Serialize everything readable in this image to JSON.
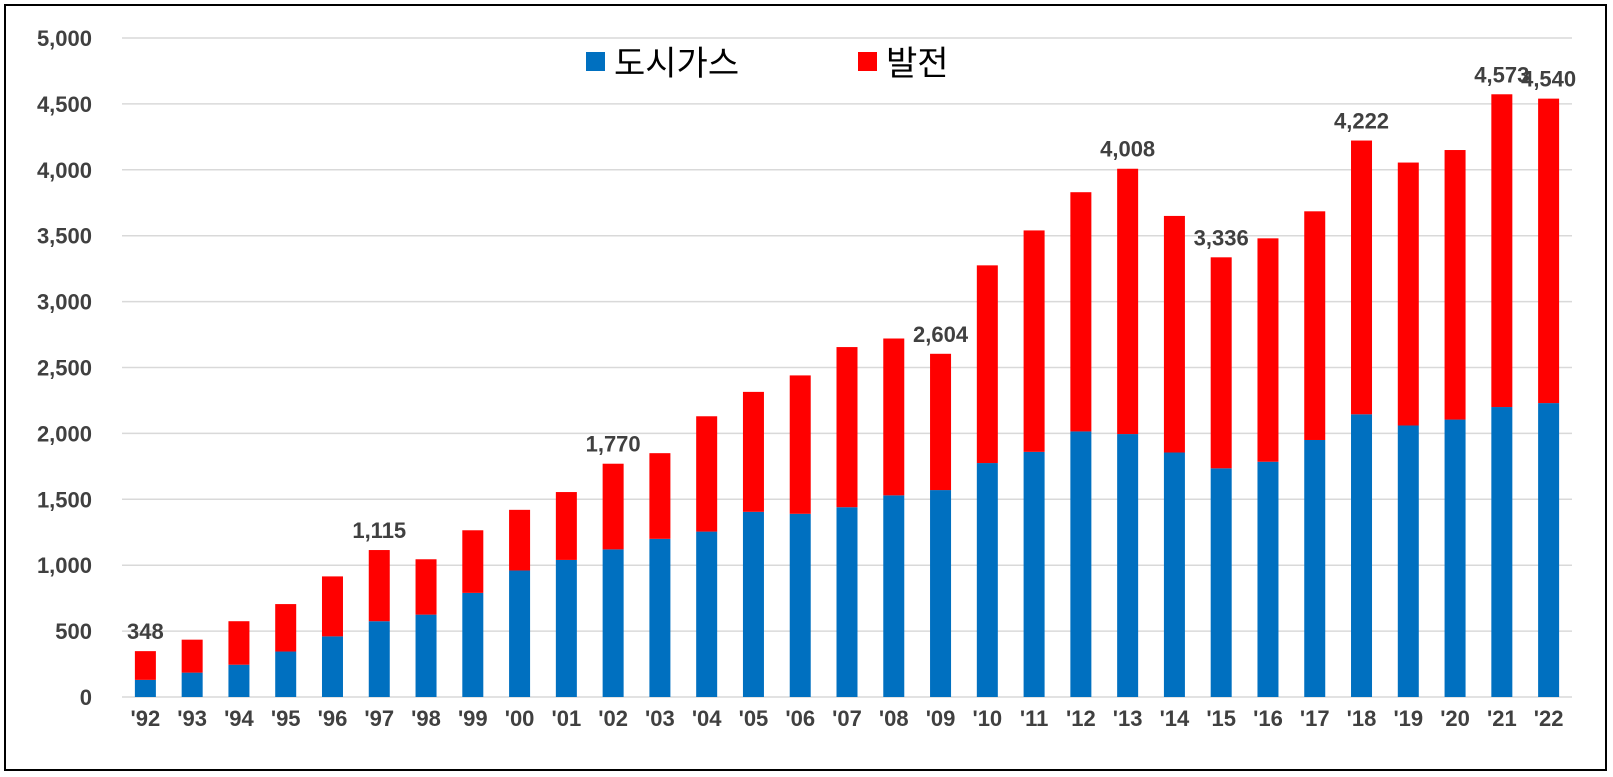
{
  "chart_data": {
    "type": "bar",
    "stacked": true,
    "categories": [
      "'92",
      "'93",
      "'94",
      "'95",
      "'96",
      "'97",
      "'98",
      "'99",
      "'00",
      "'01",
      "'02",
      "'03",
      "'04",
      "'05",
      "'06",
      "'07",
      "'08",
      "'09",
      "'10",
      "'11",
      "'12",
      "'13",
      "'14",
      "'15",
      "'16",
      "'17",
      "'18",
      "'19",
      "'20",
      "'21",
      "'22"
    ],
    "series": [
      {
        "name": "도시가스",
        "color": "#0070C0",
        "values": [
          130,
          185,
          245,
          345,
          460,
          575,
          625,
          790,
          960,
          1040,
          1120,
          1200,
          1255,
          1405,
          1390,
          1440,
          1530,
          1570,
          1775,
          1860,
          2015,
          1995,
          1855,
          1735,
          1785,
          1950,
          2145,
          2060,
          2105,
          2200,
          2230
        ]
      },
      {
        "name": "발전",
        "color": "#FF0000",
        "values": [
          218,
          250,
          330,
          360,
          455,
          540,
          420,
          475,
          460,
          515,
          650,
          650,
          875,
          910,
          1050,
          1215,
          1190,
          1034,
          1500,
          1680,
          1815,
          2013,
          1795,
          1601,
          1695,
          1735,
          2077,
          1995,
          2045,
          2373,
          2310
        ]
      }
    ],
    "totals": [
      348,
      435,
      575,
      705,
      915,
      1115,
      1045,
      1265,
      1420,
      1555,
      1770,
      1850,
      2130,
      2315,
      2440,
      2655,
      2720,
      2604,
      3275,
      3540,
      3830,
      4008,
      3650,
      3336,
      3480,
      3685,
      4222,
      4055,
      4150,
      4573,
      4540
    ],
    "data_labels": [
      {
        "index": 0,
        "text": "348"
      },
      {
        "index": 5,
        "text": "1,115"
      },
      {
        "index": 10,
        "text": "1,770"
      },
      {
        "index": 17,
        "text": "2,604"
      },
      {
        "index": 21,
        "text": "4,008"
      },
      {
        "index": 23,
        "text": "3,336"
      },
      {
        "index": 26,
        "text": "4,222"
      },
      {
        "index": 29,
        "text": "4,573"
      },
      {
        "index": 30,
        "text": "4,540"
      }
    ],
    "y_ticks": [
      "0",
      "500",
      "1,000",
      "1,500",
      "2,000",
      "2,500",
      "3,000",
      "3,500",
      "4,000",
      "4,500",
      "5,000"
    ],
    "ylim": [
      0,
      5000
    ],
    "ystep": 500,
    "grid": true,
    "legend": "top-center",
    "title": "",
    "xlabel": "",
    "ylabel": ""
  }
}
